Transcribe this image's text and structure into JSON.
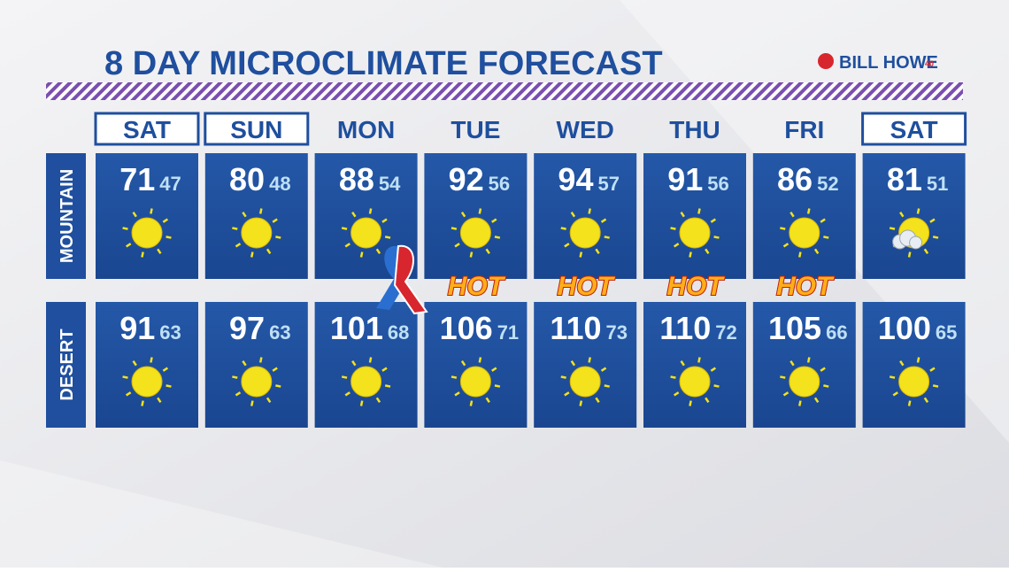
{
  "title": "8 DAY MICROCLIMATE FORECAST",
  "sponsor": {
    "name": "BILL HOWE",
    "badge": "40"
  },
  "days": [
    {
      "label": "SAT",
      "boxed": true
    },
    {
      "label": "SUN",
      "boxed": true
    },
    {
      "label": "MON",
      "boxed": false
    },
    {
      "label": "TUE",
      "boxed": false
    },
    {
      "label": "WED",
      "boxed": false
    },
    {
      "label": "THU",
      "boxed": false
    },
    {
      "label": "FRI",
      "boxed": false
    },
    {
      "label": "SAT",
      "boxed": true
    }
  ],
  "rows": [
    {
      "label": "MOUNTAIN",
      "cells": [
        {
          "high": 71,
          "low": 47,
          "icon": "sun"
        },
        {
          "high": 80,
          "low": 48,
          "icon": "sun"
        },
        {
          "high": 88,
          "low": 54,
          "icon": "sun"
        },
        {
          "high": 92,
          "low": 56,
          "icon": "sun",
          "alert": "HOT"
        },
        {
          "high": 94,
          "low": 57,
          "icon": "sun",
          "alert": "HOT"
        },
        {
          "high": 91,
          "low": 56,
          "icon": "sun",
          "alert": "HOT"
        },
        {
          "high": 86,
          "low": 52,
          "icon": "sun",
          "alert": "HOT"
        },
        {
          "high": 81,
          "low": 51,
          "icon": "partly-cloudy"
        }
      ]
    },
    {
      "label": "DESERT",
      "cells": [
        {
          "high": 91,
          "low": 63,
          "icon": "sun"
        },
        {
          "high": 97,
          "low": 63,
          "icon": "sun"
        },
        {
          "high": 101,
          "low": 68,
          "icon": "sun"
        },
        {
          "high": 106,
          "low": 71,
          "icon": "sun"
        },
        {
          "high": 110,
          "low": 73,
          "icon": "sun"
        },
        {
          "high": 110,
          "low": 72,
          "icon": "sun"
        },
        {
          "high": 105,
          "low": 66,
          "icon": "sun"
        },
        {
          "high": 100,
          "low": 65,
          "icon": "sun"
        }
      ]
    }
  ]
}
